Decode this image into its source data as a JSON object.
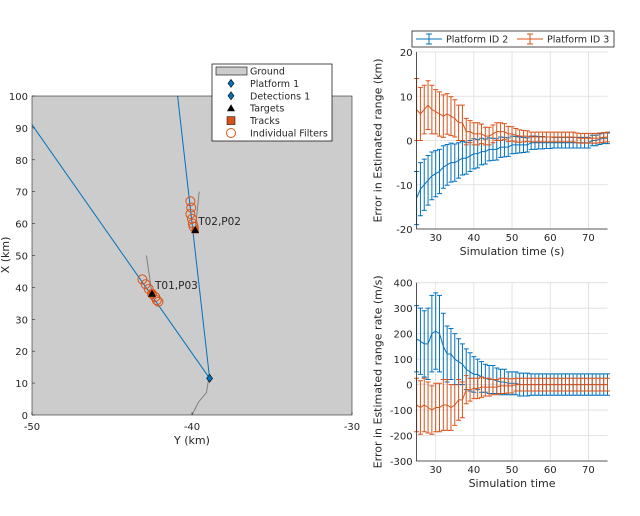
{
  "chart_data": [
    {
      "type": "scatter",
      "xlabel": "Y (km)",
      "ylabel": "X (km)",
      "xlim": [
        -50,
        -30
      ],
      "ylim": [
        0,
        100
      ],
      "xticks": [
        "-50",
        "-40",
        "-30"
      ],
      "yticks": [
        "0",
        "10",
        "20",
        "30",
        "40",
        "50",
        "60",
        "70",
        "80",
        "90",
        "100"
      ],
      "background": "#cccccc",
      "legend": {
        "placement": "top-right",
        "entries": [
          "Ground",
          "Platform 1",
          "Detections 1",
          "Targets",
          "Tracks",
          "Individual Filters"
        ]
      },
      "platform": {
        "y": -38.9,
        "x": 11.5
      },
      "detection_lines": [
        {
          "to_y": -50,
          "to_x": 91
        },
        {
          "to_y": -40.9,
          "to_x": 100
        }
      ],
      "platform_trail": [
        [
          -40,
          0
        ],
        [
          -39.6,
          4
        ],
        [
          -39.1,
          7
        ],
        [
          -38.95,
          11.5
        ]
      ],
      "targets": [
        {
          "label": "T01,P03",
          "y": -42.5,
          "x": 38,
          "trail": [
            [
              -42.85,
              50
            ],
            [
              -42.5,
              38
            ]
          ],
          "filters": [
            [
              -43.1,
              42.5
            ],
            [
              -42.9,
              41
            ],
            [
              -42.7,
              39.5
            ],
            [
              -42.5,
              38
            ],
            [
              -42.3,
              37
            ],
            [
              -42.2,
              36
            ],
            [
              -42.1,
              35.5
            ]
          ]
        },
        {
          "label": "T02,P02",
          "y": -39.8,
          "x": 58,
          "trail": [
            [
              -39.55,
              70
            ],
            [
              -39.8,
              58
            ]
          ],
          "filters": [
            [
              -40.1,
              67
            ],
            [
              -40.05,
              65
            ],
            [
              -40.1,
              63
            ],
            [
              -40,
              61.5
            ],
            [
              -39.95,
              60
            ],
            [
              -39.9,
              59
            ]
          ]
        }
      ],
      "colors": {
        "detections": "#0072bd",
        "tracks": "#d95319",
        "targets": "#000000",
        "trail": "#808080"
      }
    },
    {
      "type": "errorbar",
      "xlabel": "Simulation time (s)",
      "ylabel": "Error in Estimated range (km)",
      "xlim": [
        25,
        75
      ],
      "ylim": [
        -20,
        20
      ],
      "xticks": [
        "30",
        "40",
        "50",
        "60",
        "70"
      ],
      "yticks": [
        "-20",
        "-10",
        "0",
        "10",
        "20"
      ],
      "grid": true,
      "legend": {
        "placement": "top-outside",
        "entries": [
          "Platform ID 2",
          "Platform ID 3"
        ]
      },
      "x": [
        25,
        26,
        27,
        28,
        29,
        30,
        31,
        32,
        33,
        34,
        35,
        36,
        37,
        38,
        39,
        40,
        41,
        42,
        43,
        44,
        45,
        46,
        47,
        48,
        49,
        50,
        51,
        52,
        53,
        54,
        55,
        56,
        57,
        58,
        59,
        60,
        61,
        62,
        63,
        64,
        65,
        66,
        67,
        68,
        69,
        70,
        71,
        72,
        73,
        74,
        75
      ],
      "series": [
        {
          "name": "Platform ID 2",
          "color": "#0072bd",
          "values": [
            -13,
            -11,
            -10,
            -9,
            -8,
            -7.5,
            -7,
            -6,
            -5.5,
            -5,
            -5,
            -4.5,
            -4,
            -4,
            -3.5,
            -3,
            -3,
            -2.5,
            -2.5,
            -2,
            -2,
            -2,
            -1.5,
            -1.5,
            -1.5,
            -1,
            -1,
            -1,
            -1,
            -1,
            -0.5,
            -0.5,
            -0.5,
            -0.5,
            -0.5,
            -0.5,
            -0.5,
            -0.5,
            -0.5,
            -0.5,
            -0.5,
            -0.5,
            -0.5,
            -0.5,
            -0.5,
            -0.5,
            0,
            0,
            0.3,
            0.5,
            0.5
          ],
          "errors": [
            6,
            6,
            5.8,
            5.6,
            5.4,
            5.2,
            5,
            4.8,
            4.6,
            4.4,
            4.2,
            4,
            3.8,
            3.6,
            3.5,
            3.4,
            3.2,
            3,
            2.8,
            2.6,
            2.5,
            2.4,
            2.3,
            2.2,
            2.1,
            2,
            1.9,
            1.8,
            1.7,
            1.6,
            1.5,
            1.5,
            1.4,
            1.4,
            1.3,
            1.3,
            1.2,
            1.2,
            1.2,
            1.2,
            1.2,
            1.2,
            1.2,
            1.2,
            1.2,
            1.2,
            1.2,
            1.2,
            1.2,
            1.2,
            1.2
          ]
        },
        {
          "name": "Platform ID 3",
          "color": "#d95319",
          "values": [
            7,
            6,
            7,
            8,
            7,
            6.5,
            6,
            5.5,
            6,
            5.5,
            5,
            4,
            4,
            2,
            2,
            1.5,
            1.5,
            1.5,
            1,
            1,
            1.5,
            2,
            2,
            2,
            1.5,
            1.5,
            1.2,
            1,
            1,
            1,
            0.8,
            0.8,
            0.8,
            0.8,
            0.8,
            0.8,
            0.8,
            0.8,
            0.8,
            0.8,
            0.8,
            0.8,
            0.6,
            0.5,
            0.5,
            0.5,
            0.5,
            0.5,
            0.6,
            0.7,
            0.8
          ],
          "errors": [
            7,
            6,
            5.5,
            5.5,
            5.5,
            5,
            5,
            4.8,
            4.6,
            4.4,
            4.2,
            4,
            4,
            3,
            2.5,
            2.5,
            2.5,
            2.2,
            2,
            2,
            2,
            2,
            2,
            1.8,
            1.7,
            1.6,
            1.5,
            1.4,
            1.3,
            1.2,
            1.1,
            1.1,
            1.1,
            1.1,
            1.1,
            1.1,
            1.1,
            1.1,
            1.1,
            1.1,
            1.1,
            1.1,
            1.1,
            1.1,
            1.1,
            1.1,
            1.1,
            1.1,
            1.1,
            1.1,
            1.1
          ]
        }
      ]
    },
    {
      "type": "errorbar",
      "xlabel": "Simulation time",
      "ylabel": "Error in Estimated range rate (m/s)",
      "xlim": [
        25,
        75
      ],
      "ylim": [
        -300,
        400
      ],
      "xticks": [
        "30",
        "40",
        "50",
        "60",
        "70"
      ],
      "yticks": [
        "-300",
        "-200",
        "-100",
        "0",
        "100",
        "200",
        "300",
        "400"
      ],
      "grid": true,
      "x": [
        25,
        26,
        27,
        28,
        29,
        30,
        31,
        32,
        33,
        34,
        35,
        36,
        37,
        38,
        39,
        40,
        41,
        42,
        43,
        44,
        45,
        46,
        47,
        48,
        49,
        50,
        51,
        52,
        53,
        54,
        55,
        56,
        57,
        58,
        59,
        60,
        61,
        62,
        63,
        64,
        65,
        66,
        67,
        68,
        69,
        70,
        71,
        72,
        73,
        74,
        75
      ],
      "series": [
        {
          "color": "#0072bd",
          "values": [
            180,
            170,
            160,
            160,
            200,
            210,
            200,
            150,
            120,
            120,
            100,
            90,
            80,
            60,
            50,
            40,
            40,
            30,
            25,
            20,
            20,
            15,
            10,
            10,
            5,
            5,
            5,
            0,
            0,
            0,
            0,
            0,
            0,
            0,
            0,
            0,
            0,
            0,
            0,
            0,
            0,
            0,
            0,
            0,
            0,
            0,
            0,
            0,
            0,
            0,
            0
          ],
          "errors": [
            130,
            130,
            130,
            140,
            150,
            150,
            150,
            130,
            110,
            100,
            100,
            90,
            80,
            80,
            75,
            70,
            60,
            60,
            55,
            55,
            55,
            50,
            50,
            50,
            45,
            45,
            45,
            45,
            45,
            45,
            42,
            42,
            42,
            42,
            42,
            42,
            42,
            42,
            42,
            42,
            42,
            42,
            42,
            42,
            42,
            42,
            42,
            42,
            42,
            42,
            42
          ]
        },
        {
          "color": "#d95319",
          "values": [
            -80,
            -90,
            -80,
            -90,
            -100,
            -90,
            -90,
            -80,
            -80,
            -90,
            -80,
            -60,
            -60,
            -20,
            -20,
            -15,
            -15,
            -10,
            -10,
            -10,
            -10,
            -10,
            -5,
            -5,
            -5,
            -5,
            0,
            0,
            0,
            0,
            0,
            0,
            0,
            0,
            0,
            0,
            0,
            0,
            0,
            0,
            0,
            0,
            0,
            0,
            0,
            0,
            0,
            0,
            0,
            0,
            0
          ],
          "errors": [
            105,
            105,
            105,
            100,
            95,
            95,
            95,
            100,
            100,
            90,
            80,
            80,
            70,
            55,
            45,
            40,
            40,
            40,
            35,
            35,
            30,
            30,
            30,
            30,
            28,
            28,
            25,
            25,
            25,
            25,
            25,
            25,
            25,
            25,
            25,
            25,
            25,
            25,
            25,
            25,
            25,
            25,
            25,
            25,
            25,
            25,
            25,
            25,
            25,
            25,
            25
          ]
        }
      ]
    }
  ]
}
